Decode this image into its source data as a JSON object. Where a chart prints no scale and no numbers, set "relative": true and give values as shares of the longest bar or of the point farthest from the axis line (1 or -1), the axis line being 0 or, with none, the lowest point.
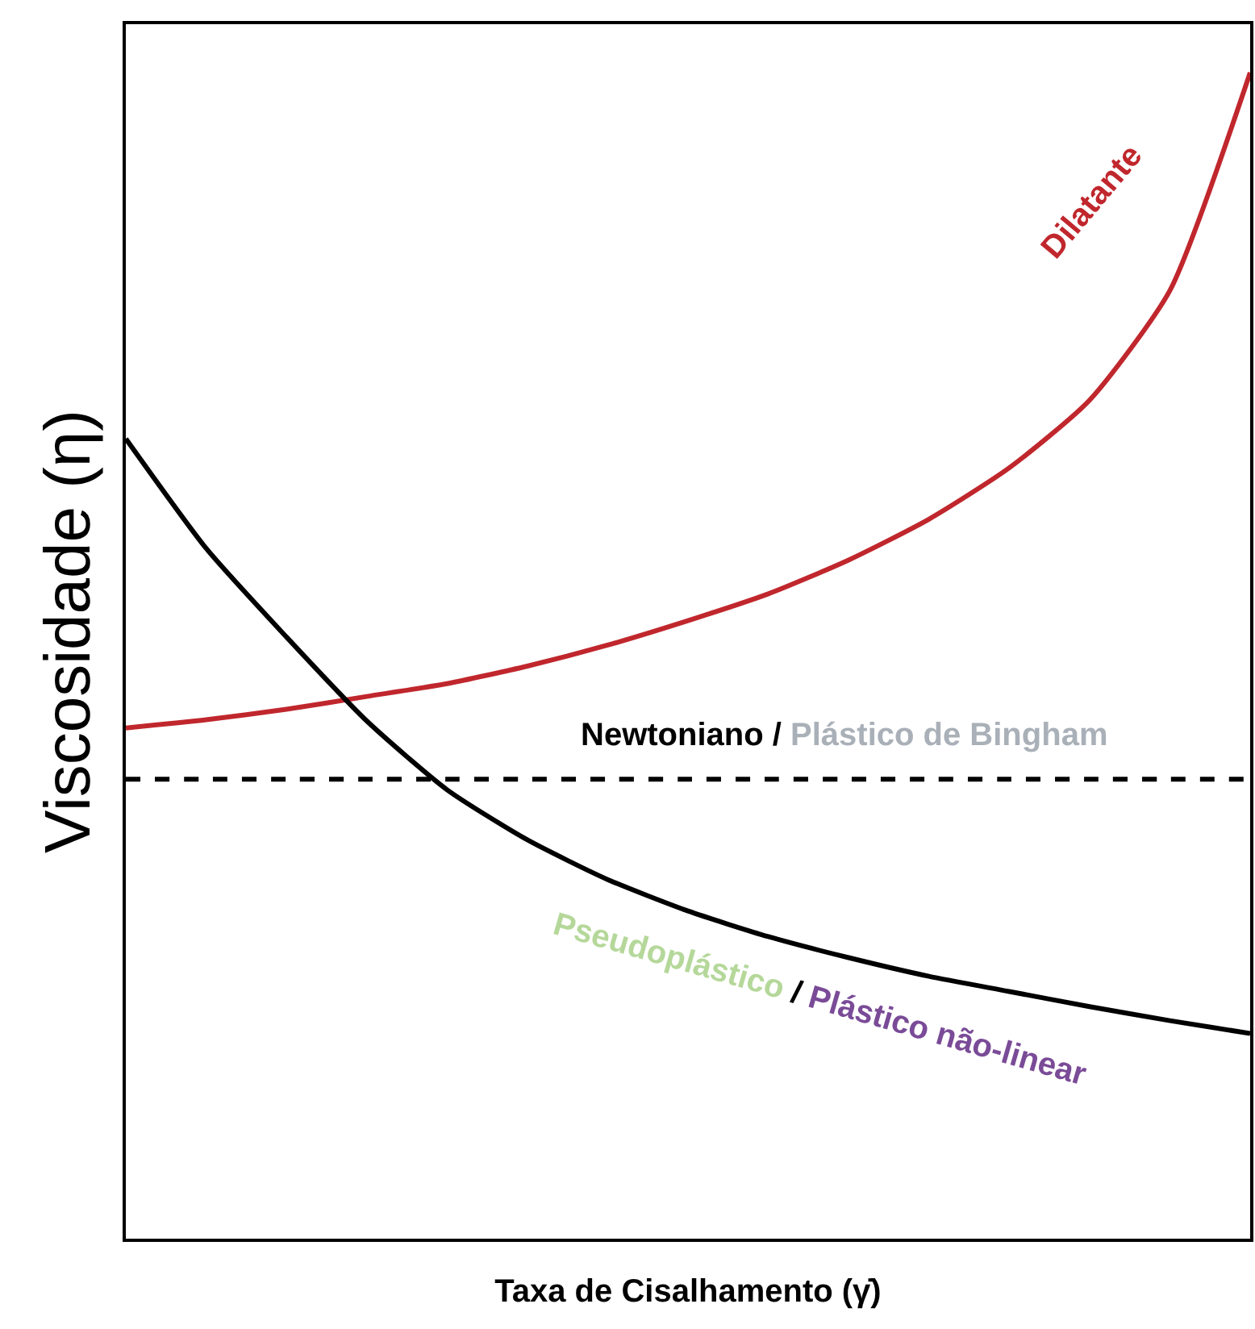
{
  "chart_data": {
    "type": "line",
    "relative": true,
    "xlabel": "Taxa de Cisalhamento (γ̇)",
    "ylabel": "Viscosidade (η)",
    "categories": [
      null,
      null,
      null,
      null,
      null,
      null,
      null,
      null,
      null,
      null,
      null,
      null,
      null,
      null,
      null
    ],
    "series": [
      {
        "name": "Dilatante",
        "color": "#c0272d",
        "values": [
          0.438,
          0.445,
          0.454,
          0.465,
          0.476,
          0.491,
          0.509,
          0.53,
          0.553,
          0.582,
          0.617,
          0.661,
          0.719,
          0.813,
          1
        ]
      },
      {
        "name": "Pseudoplástico / Plástico não-linear",
        "color": "#000000",
        "values": [
          0.686,
          0.592,
          0.516,
          0.444,
          0.385,
          0.342,
          0.308,
          0.281,
          0.259,
          0.241,
          0.225,
          0.212,
          0.199,
          0.187,
          0.176
        ]
      },
      {
        "name": "Newtoniano / Plástico de Bingham",
        "color": "#000000",
        "line_style": "dashed",
        "values": [
          0.394,
          0.394,
          0.394,
          0.394,
          0.394,
          0.394,
          0.394,
          0.394,
          0.394,
          0.394,
          0.394,
          0.394,
          0.394,
          0.394,
          0.394
        ]
      }
    ],
    "legend": false,
    "marker": "none"
  }
}
